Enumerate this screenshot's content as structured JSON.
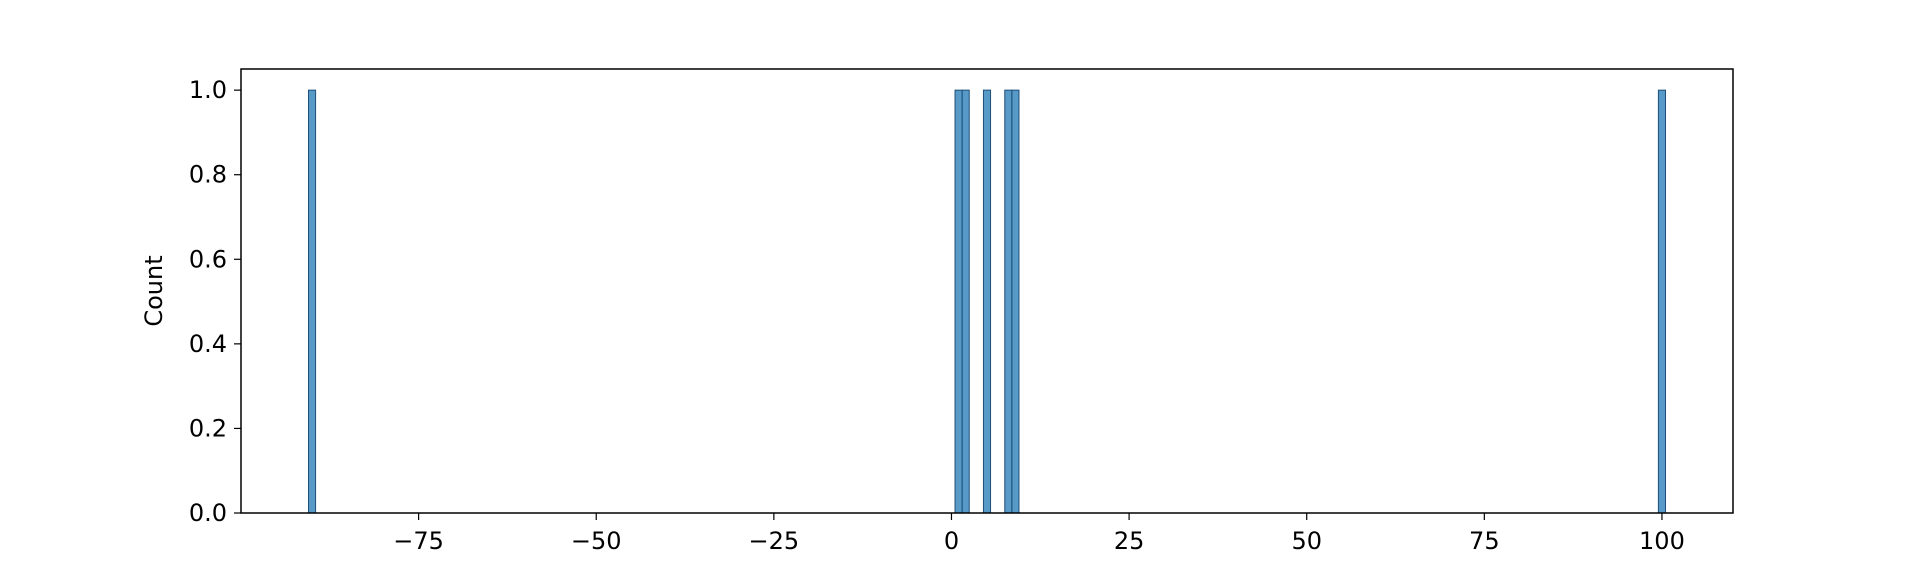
{
  "chart_data": {
    "type": "bar",
    "title": "",
    "xlabel": "",
    "ylabel": "Count",
    "xlim": [
      -100,
      110
    ],
    "ylim": [
      0,
      1.05
    ],
    "grid": false,
    "bar_color": "#1f77b4",
    "bar_edge_color": "#1f4f78",
    "bars": [
      {
        "x0": -90.5,
        "x1": -89.5,
        "value": 1
      },
      {
        "x0": 0.5,
        "x1": 1.5,
        "value": 1
      },
      {
        "x0": 1.5,
        "x1": 2.5,
        "value": 1
      },
      {
        "x0": 4.5,
        "x1": 5.5,
        "value": 1
      },
      {
        "x0": 7.5,
        "x1": 8.5,
        "value": 1
      },
      {
        "x0": 8.5,
        "x1": 9.5,
        "value": 1
      },
      {
        "x0": 99.5,
        "x1": 100.5,
        "value": 1
      }
    ],
    "xticks": [
      -75,
      -50,
      -25,
      0,
      25,
      50,
      75,
      100
    ],
    "xtick_labels": [
      "−75",
      "−50",
      "−25",
      "0",
      "25",
      "50",
      "75",
      "100"
    ],
    "yticks": [
      0.0,
      0.2,
      0.4,
      0.6,
      0.8,
      1.0
    ],
    "ytick_labels": [
      "0.0",
      "0.2",
      "0.4",
      "0.6",
      "0.8",
      "1.0"
    ]
  }
}
